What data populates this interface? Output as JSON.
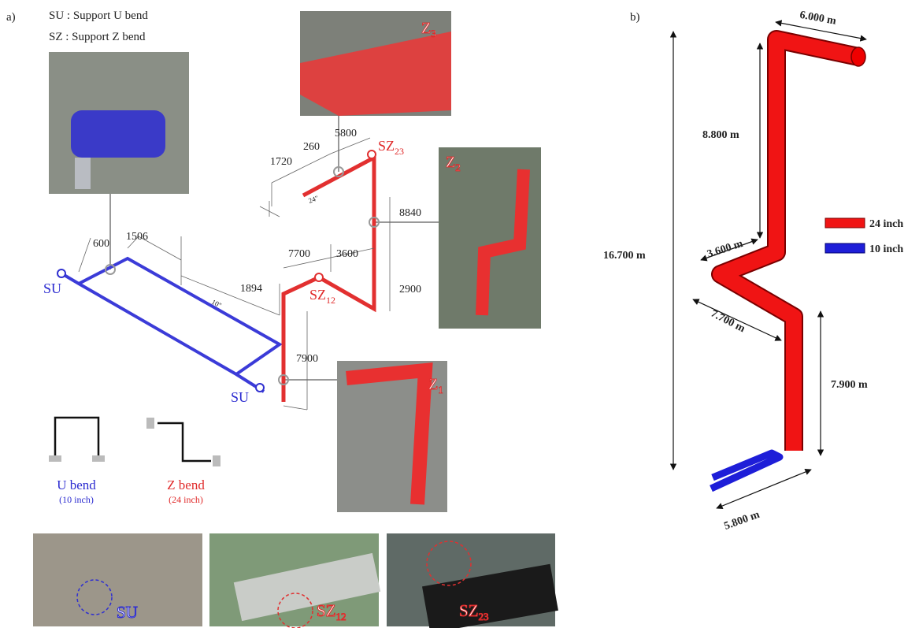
{
  "panel_a": {
    "label": "a)",
    "legend": [
      "SU : Support U bend",
      "SZ : Support Z bend"
    ],
    "dimensions": [
      "600",
      "1506",
      "1894",
      "1720",
      "260",
      "5800",
      "8840",
      "7700",
      "3600",
      "2900",
      "7900"
    ],
    "pipe_marks": [
      "10\"",
      "24\""
    ],
    "supports": [
      {
        "base": "SU"
      },
      {
        "base": "SU"
      },
      {
        "base": "SZ",
        "sub": "12"
      },
      {
        "base": "SZ",
        "sub": "23"
      }
    ],
    "zones": [
      {
        "base": "Z",
        "sub": "3"
      },
      {
        "base": "Z",
        "sub": "2"
      },
      {
        "base": "Z",
        "sub": "1"
      }
    ],
    "bends": [
      {
        "name": "U bend",
        "size": "(10 inch)"
      },
      {
        "name": "Z bend",
        "size": "(24 inch)"
      }
    ],
    "photo_labels": [
      {
        "base": "SU"
      },
      {
        "base": "SZ",
        "sub": "12"
      },
      {
        "base": "SZ",
        "sub": "23"
      }
    ]
  },
  "panel_b": {
    "label": "b)",
    "dimensions": [
      "6.000 m",
      "8.800 m",
      "16.700 m",
      "3.600 m",
      "7.700 m",
      "7.900 m",
      "5.800 m"
    ],
    "legend": [
      "24 inch",
      "10 inch"
    ]
  }
}
